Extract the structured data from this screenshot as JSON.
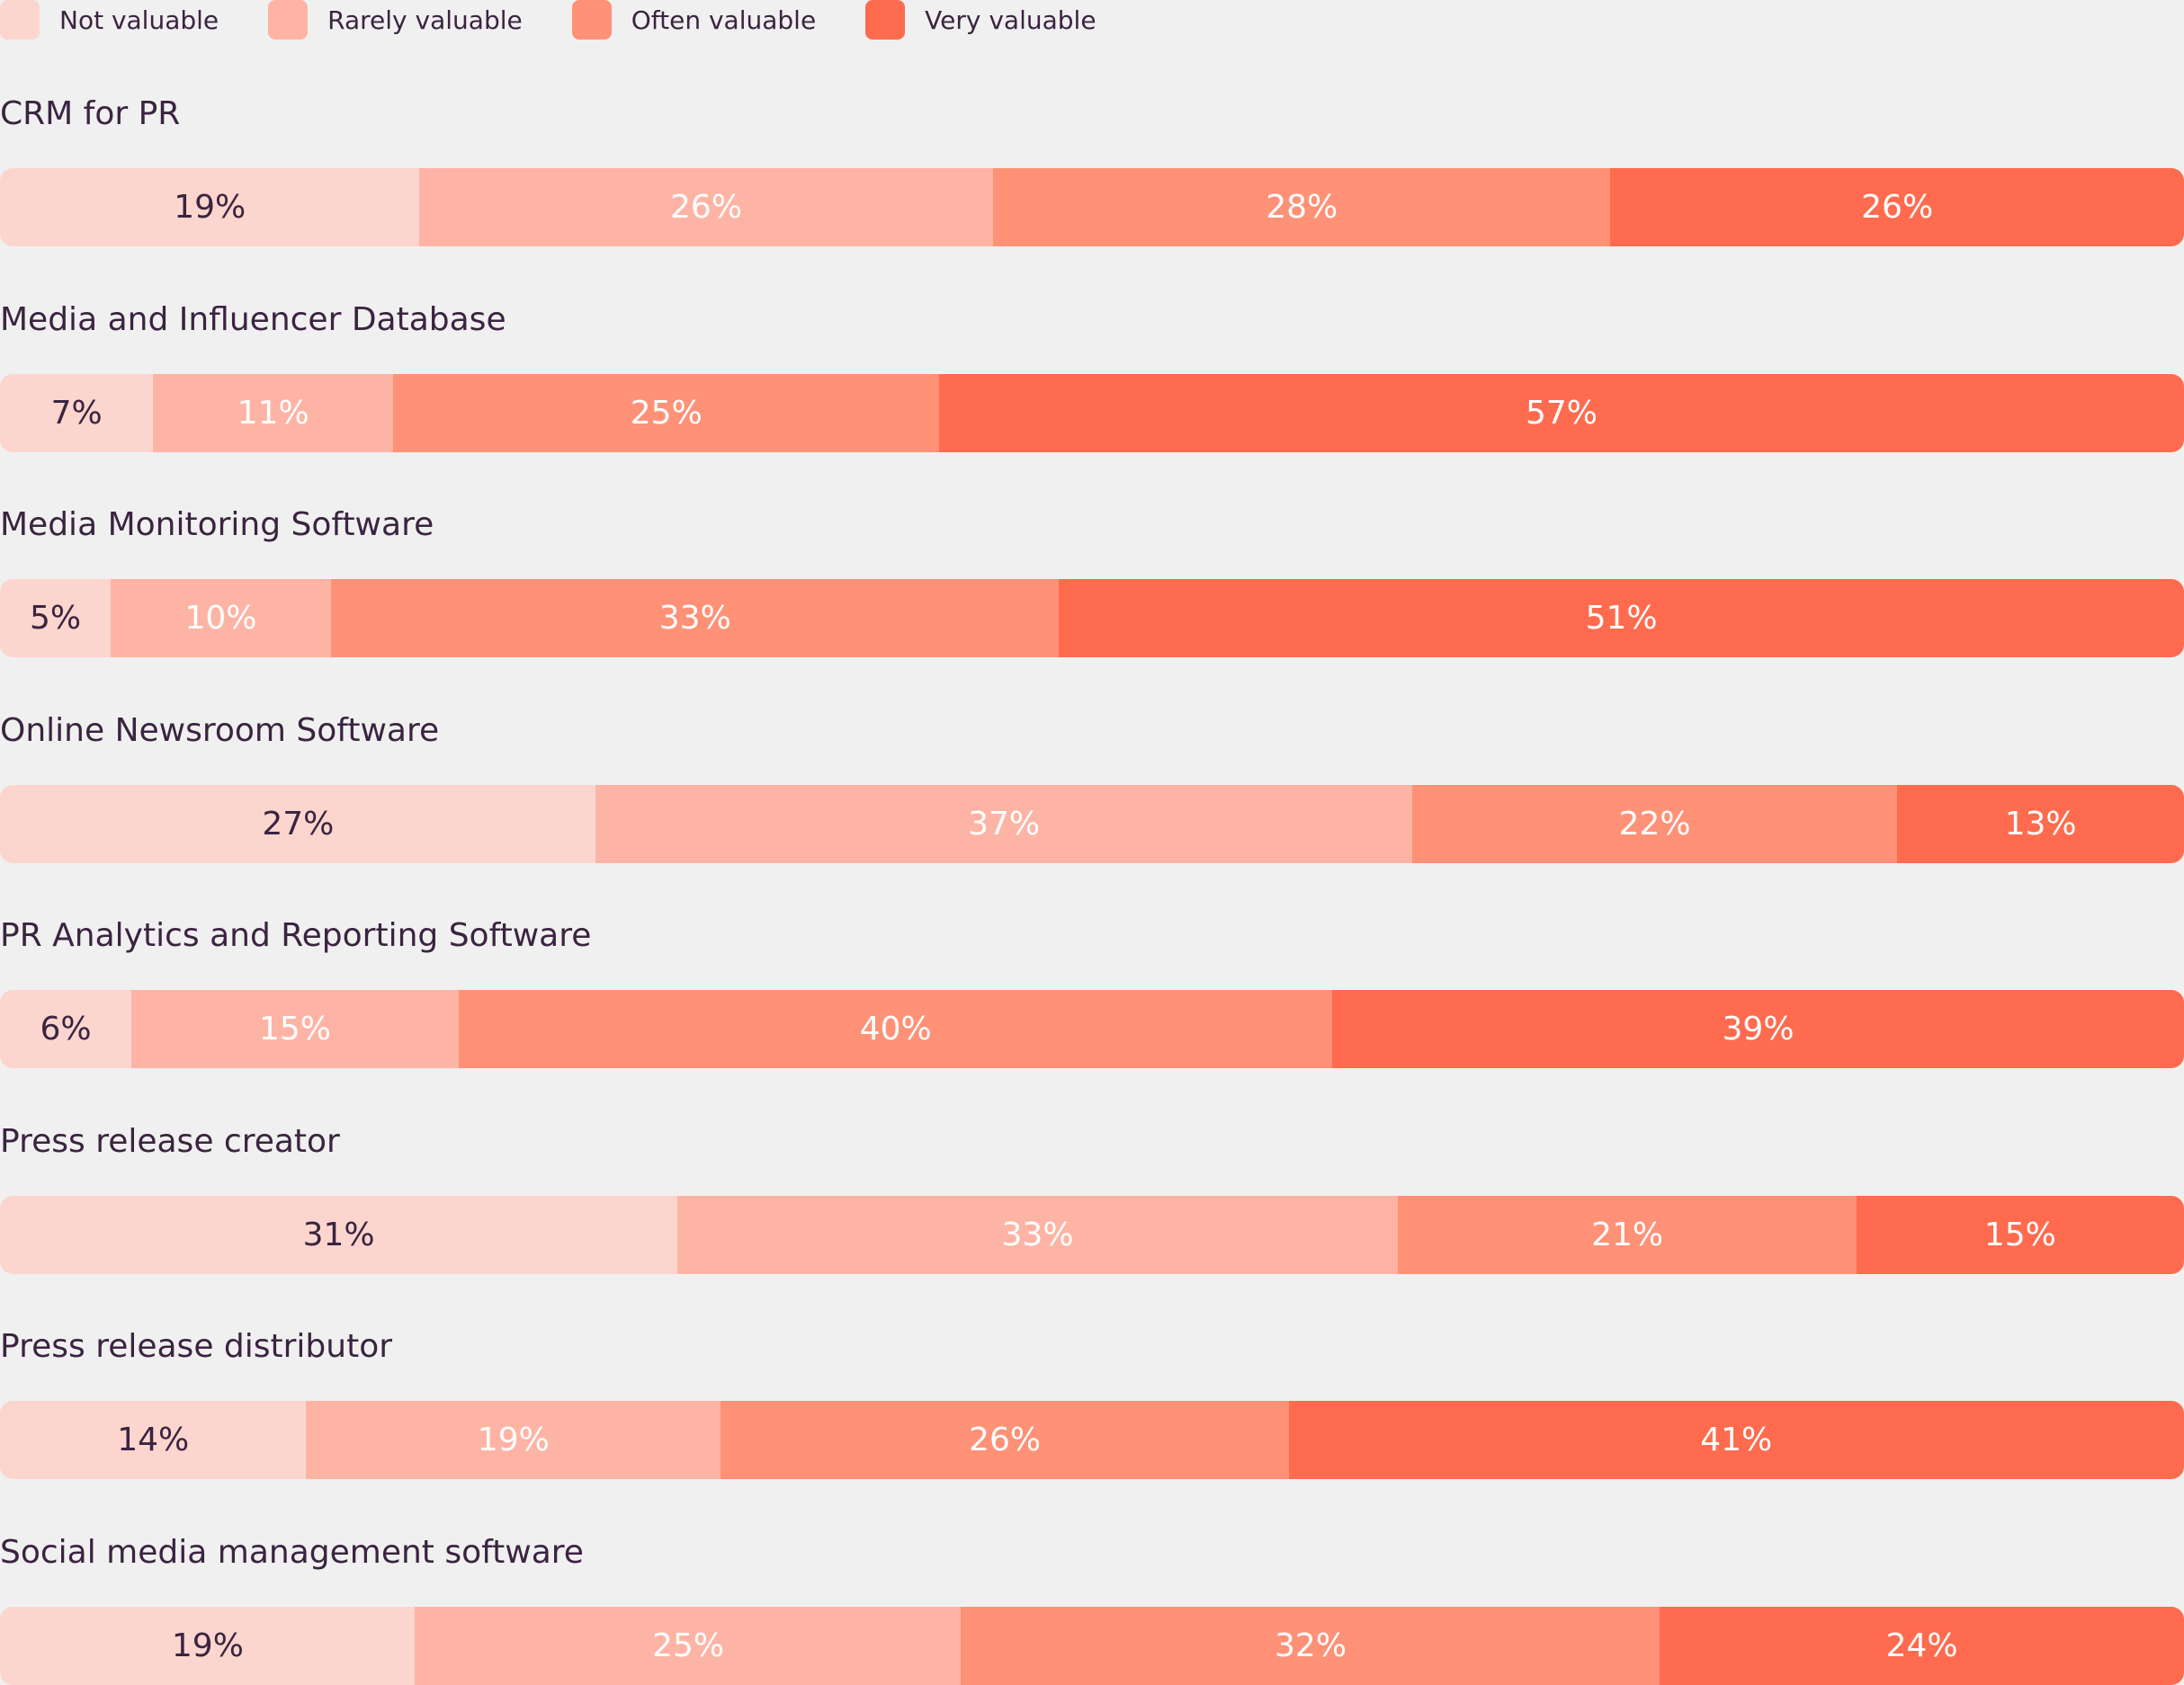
{
  "colors": {
    "not_valuable": "#fcd6ce",
    "rarely_valuable": "#feb4a5",
    "often_valuable": "#ff9177",
    "very_valuable": "#ff6b4e",
    "dark_text": "#3a2440",
    "light_text": "#ffffff"
  },
  "legend": [
    {
      "key": "not_valuable",
      "label": "Not valuable"
    },
    {
      "key": "rarely_valuable",
      "label": "Rarely valuable"
    },
    {
      "key": "often_valuable",
      "label": "Often valuable"
    },
    {
      "key": "very_valuable",
      "label": "Very valuable"
    }
  ],
  "chart_data": {
    "type": "bar",
    "orientation": "horizontal",
    "stacked": "100%",
    "legend_position": "top-left",
    "grid": false,
    "categories": [
      "CRM for PR",
      "Media and Influencer Database",
      "Media Monitoring Software",
      "Online Newsroom Software",
      "PR Analytics and Reporting Software",
      "Press release creator",
      "Press release distributor",
      "Social media management software"
    ],
    "series": [
      {
        "name": "Not valuable",
        "key": "not_valuable",
        "values": [
          19,
          7,
          5,
          27,
          6,
          31,
          14,
          19
        ]
      },
      {
        "name": "Rarely valuable",
        "key": "rarely_valuable",
        "values": [
          26,
          11,
          10,
          37,
          15,
          33,
          19,
          25
        ]
      },
      {
        "name": "Often valuable",
        "key": "often_valuable",
        "values": [
          28,
          25,
          33,
          22,
          40,
          21,
          26,
          32
        ]
      },
      {
        "name": "Very valuable",
        "key": "very_valuable",
        "values": [
          26,
          57,
          51,
          13,
          39,
          15,
          41,
          24
        ]
      }
    ],
    "value_suffix": "%"
  }
}
